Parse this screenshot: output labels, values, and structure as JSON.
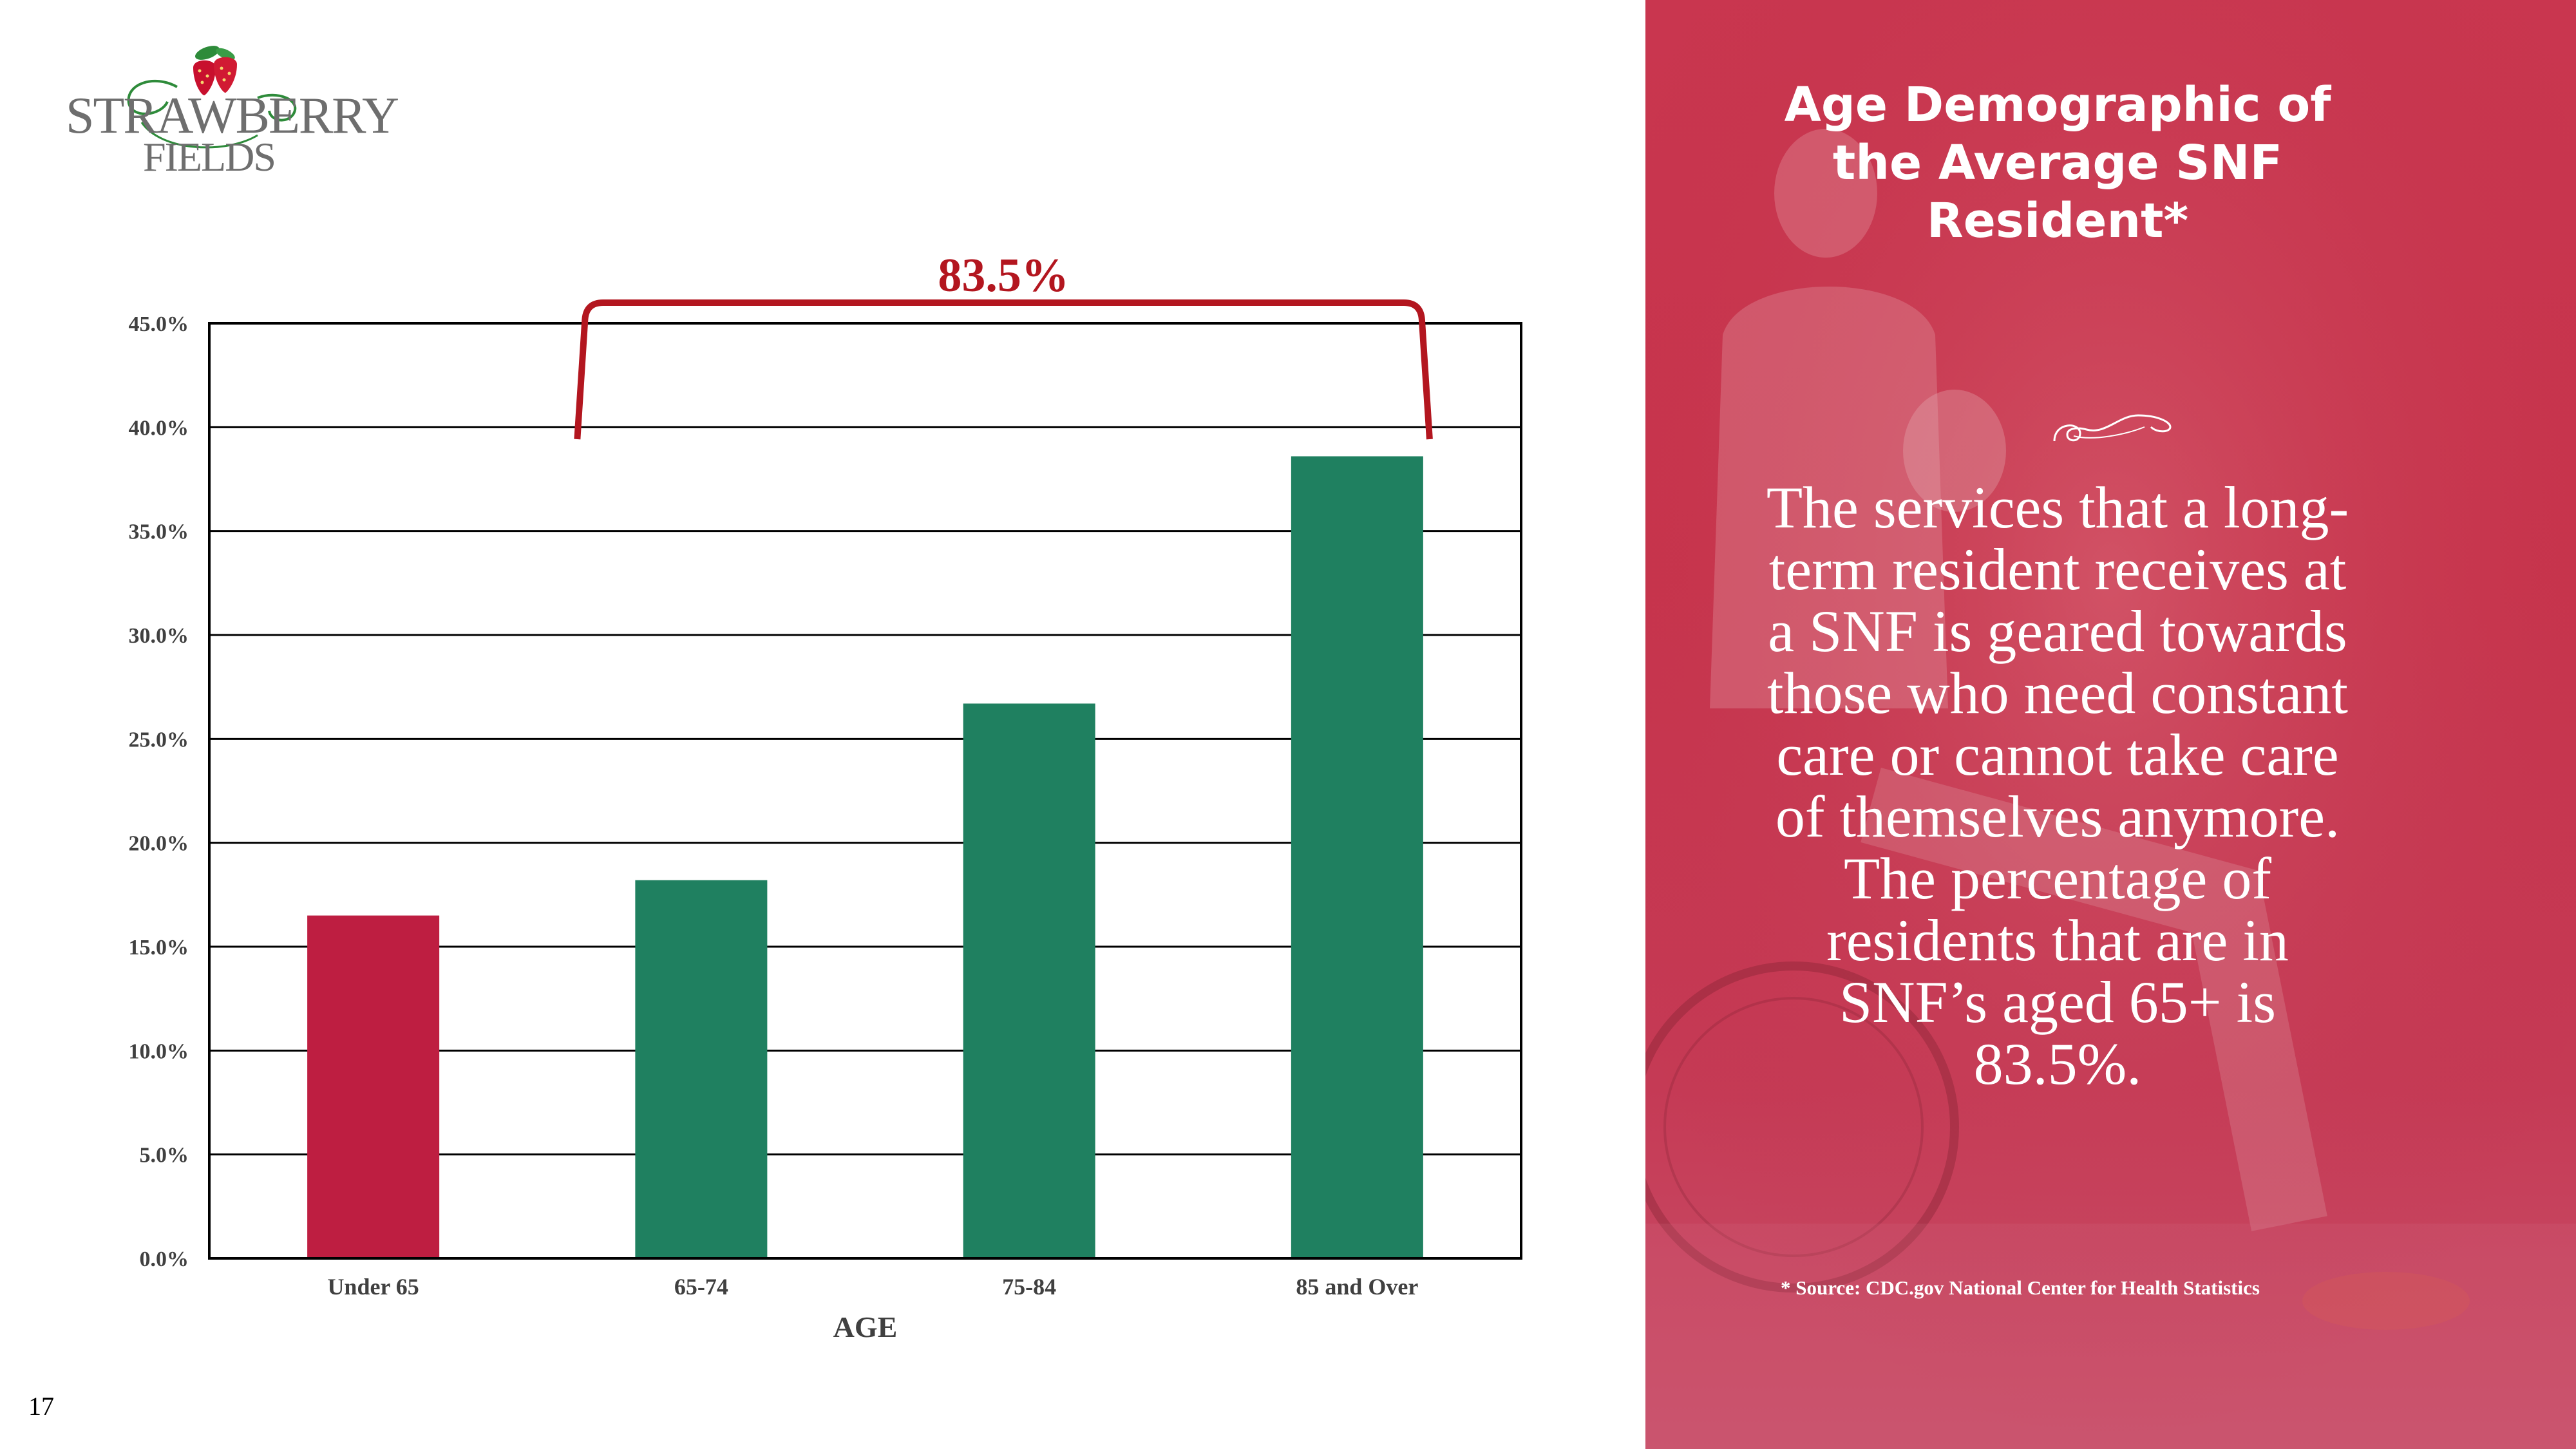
{
  "logo": {
    "line1": "STRAWBERRY",
    "line2": "FIELDS"
  },
  "page_number": "17",
  "colors": {
    "under65_bar": "#be1e41",
    "bar": "#1f8060",
    "bracket": "#b3161f",
    "panel": "#c9364f"
  },
  "chart_data": {
    "type": "bar",
    "categories": [
      "Under 65",
      "65-74",
      "75-84",
      "85 and Over"
    ],
    "values": [
      16.5,
      18.2,
      26.7,
      38.6
    ],
    "xlabel": "AGE",
    "ylabel": "",
    "ylim": [
      0,
      45
    ],
    "yticks": [
      "0.0%",
      "5.0%",
      "10.0%",
      "15.0%",
      "20.0%",
      "25.0%",
      "30.0%",
      "35.0%",
      "40.0%",
      "45.0%"
    ],
    "grid": true,
    "annotation": {
      "label": "83.5%",
      "from_category": "65-74",
      "to_category": "85 and Over"
    }
  },
  "panel": {
    "title": "Age Demographic of the Average SNF Resident*",
    "body": "The services that a long-term resident receives at a SNF is geared towards those who need constant care or cannot take care of themselves anymore. The percentage of residents that are in SNF’s aged 65+ is 83.5%.",
    "source": "* Source: CDC.gov National Center for Health Statistics"
  }
}
